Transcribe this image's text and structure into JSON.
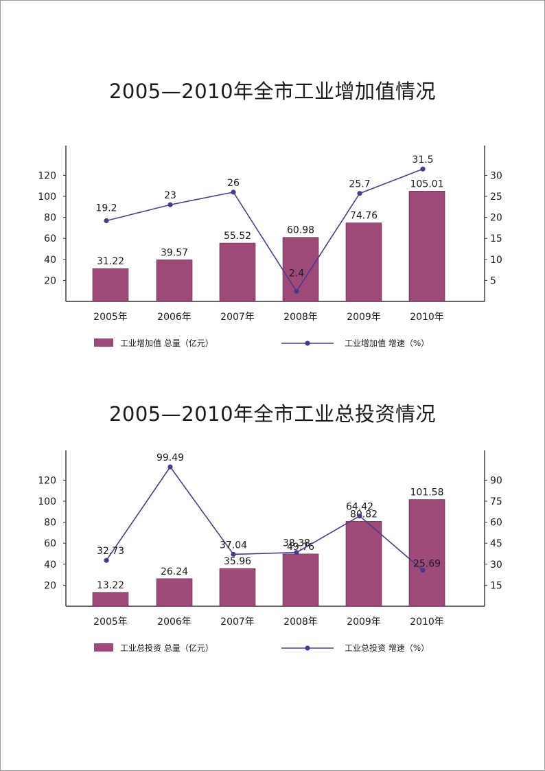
{
  "chart_data": [
    {
      "type": "bar",
      "title": "2005—2010年全市工业增加值情况",
      "categories": [
        "2005年",
        "2006年",
        "2007年",
        "2008年",
        "2009年",
        "2010年"
      ],
      "series": [
        {
          "name": "工业增加值  总量（亿元）",
          "type": "bar",
          "axis": "left",
          "values": [
            31.22,
            39.57,
            55.52,
            60.98,
            74.76,
            105.01
          ]
        },
        {
          "name": "工业增加值  增速（%）",
          "type": "line",
          "axis": "right",
          "values": [
            19.2,
            23,
            26,
            2.4,
            25.7,
            31.5
          ]
        }
      ],
      "left_axis": {
        "ticks": [
          20,
          40,
          60,
          80,
          100,
          120
        ]
      },
      "right_axis": {
        "ticks": [
          5,
          10,
          15,
          20,
          25,
          30
        ]
      },
      "legend": "bottom",
      "grid": false
    },
    {
      "type": "bar",
      "title": "2005—2010年全市工业总投资情况",
      "categories": [
        "2005年",
        "2006年",
        "2007年",
        "2008年",
        "2009年",
        "2010年"
      ],
      "series": [
        {
          "name": "工业总投资  总量（亿元）",
          "type": "bar",
          "axis": "left",
          "values": [
            13.22,
            26.24,
            35.96,
            49.76,
            80.82,
            101.58
          ]
        },
        {
          "name": "工业总投资  增速（%）",
          "type": "line",
          "axis": "right",
          "values": [
            32.73,
            99.49,
            37.04,
            38.38,
            64.42,
            25.69
          ]
        }
      ],
      "left_axis": {
        "ticks": [
          20,
          40,
          60,
          80,
          100,
          120
        ]
      },
      "right_axis": {
        "ticks": [
          15,
          30,
          45,
          60,
          75,
          90
        ]
      },
      "legend": "bottom",
      "grid": false
    }
  ],
  "colors": {
    "bar": "#9e4a78",
    "line": "#4b3a8c",
    "axis": "#333333"
  }
}
